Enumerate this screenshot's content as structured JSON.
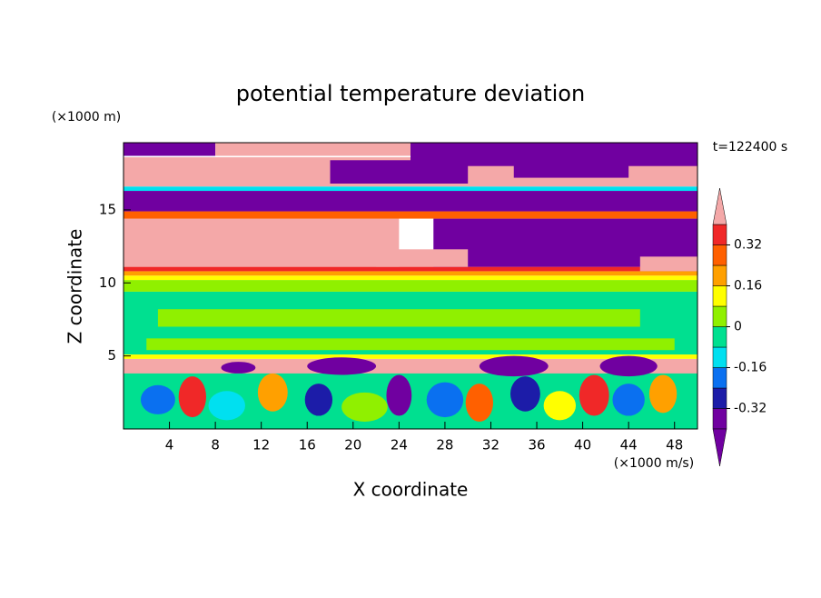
{
  "chart_data": {
    "type": "contour",
    "title": "potential temperature deviation",
    "x_label": "X coordinate",
    "y_label": "Z coordinate",
    "x_unit": "(×1000 m/s)",
    "y_unit": "(×1000 m)",
    "annotation": "t=122400 s",
    "xlim": [
      0,
      50
    ],
    "ylim": [
      0,
      19.6
    ],
    "xticks": [
      4,
      8,
      12,
      16,
      20,
      24,
      28,
      32,
      36,
      40,
      44,
      48
    ],
    "yticks": [
      5,
      10,
      15
    ],
    "levels": [
      -0.4,
      -0.32,
      -0.24,
      -0.16,
      -0.08,
      0,
      0.08,
      0.16,
      0.24,
      0.32,
      0.4
    ],
    "colors": [
      "#7000a0",
      "#7000a0",
      "#1c1ca8",
      "#0a70f0",
      "#00e0f0",
      "#00e090",
      "#90f000",
      "#ffff00",
      "#ffa000",
      "#ff6000",
      "#f02828",
      "#f4a8a8"
    ],
    "colorbar_ticks": [
      -0.32,
      -0.16,
      0,
      0.16,
      0.32
    ]
  }
}
